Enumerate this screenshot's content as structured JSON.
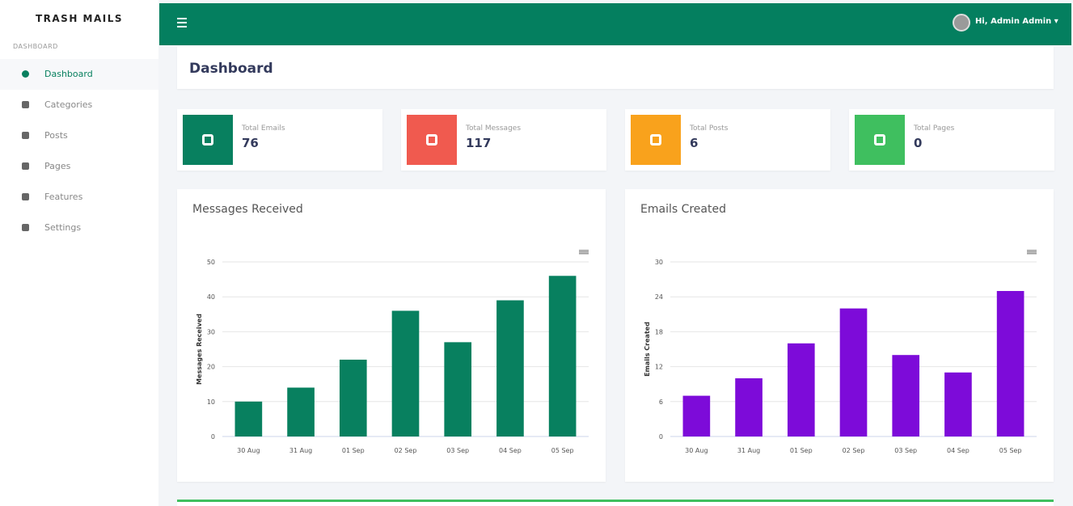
{
  "brand": "TRASH MAILS",
  "sidebar": {
    "section": "DASHBOARD",
    "items": [
      "Dashboard",
      "Categories",
      "Posts",
      "Pages",
      "Features",
      "Settings"
    ]
  },
  "topbar": {
    "user": "Hi, Admin Admin"
  },
  "page_title": "Dashboard",
  "stats": [
    {
      "label": "Total Emails",
      "value": 76,
      "color": "#08805f"
    },
    {
      "label": "Total Messages",
      "value": 117,
      "color": "#f05a4f"
    },
    {
      "label": "Total Posts",
      "value": 6,
      "color": "#f9a21c"
    },
    {
      "label": "Total Pages",
      "value": 0,
      "color": "#3fbf5f"
    }
  ],
  "chart_data": [
    {
      "type": "bar",
      "title": "Messages Received",
      "y_label": "Messages Received",
      "categories": [
        "30 Aug",
        "31 Aug",
        "01 Sep",
        "02 Sep",
        "03 Sep",
        "04 Sep",
        "05 Sep"
      ],
      "values": [
        10,
        14,
        22,
        36,
        27,
        39,
        46
      ],
      "color": "#08805f",
      "ylim": [
        0,
        50
      ],
      "yticks": [
        0,
        10,
        20,
        30,
        40,
        50
      ],
      "grid": true
    },
    {
      "type": "bar",
      "title": "Emails Created",
      "y_label": "Emails Created",
      "categories": [
        "30 Aug",
        "31 Aug",
        "01 Sep",
        "02 Sep",
        "03 Sep",
        "04 Sep",
        "05 Sep"
      ],
      "values": [
        7,
        10,
        16,
        22,
        14,
        11,
        25
      ],
      "color": "#7d0bd9",
      "ylim": [
        0,
        30
      ],
      "yticks": [
        0,
        6,
        12,
        18,
        24,
        30
      ],
      "grid": true
    }
  ]
}
